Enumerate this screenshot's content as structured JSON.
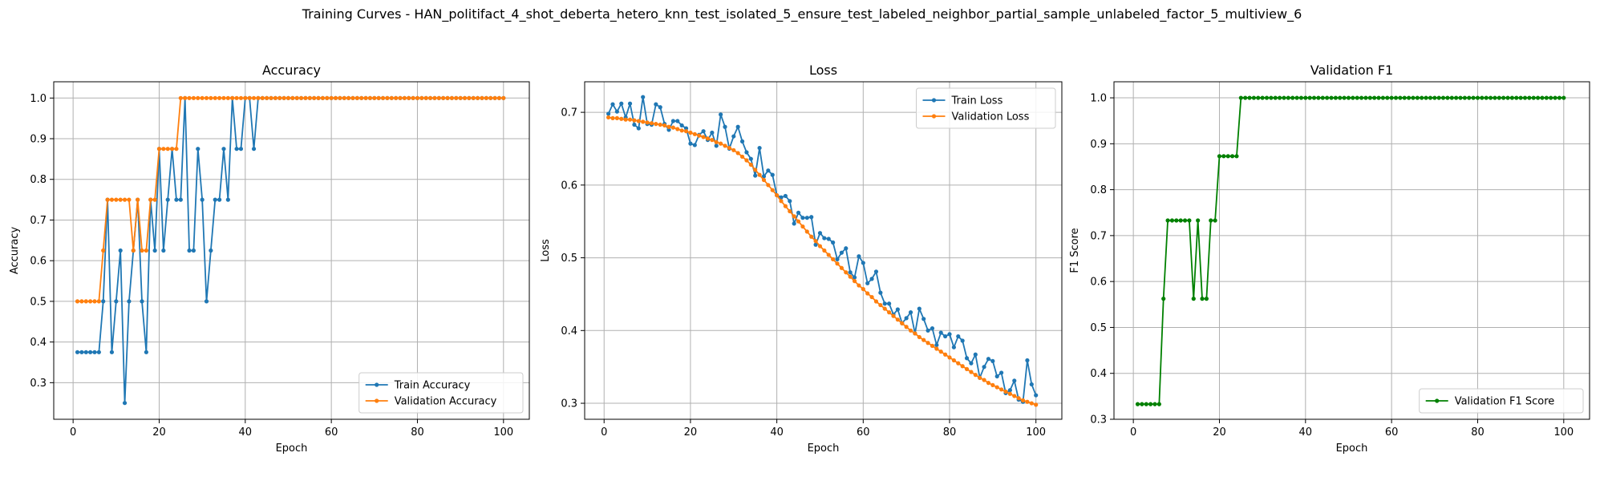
{
  "figure_title": "Training Curves - HAN_politifact_4_shot_deberta_hetero_knn_test_isolated_5_ensure_test_labeled_neighbor_partial_sample_unlabeled_factor_5_multiview_6",
  "colors": {
    "blue": "#1f77b4",
    "orange": "#ff7f0e",
    "green": "#008000",
    "grid": "#b0b0b0"
  },
  "chart_data": [
    {
      "type": "line",
      "title": "Accuracy",
      "xlabel": "Epoch",
      "ylabel": "Accuracy",
      "xlim": [
        -4.5,
        106
      ],
      "ylim": [
        0.21,
        1.04
      ],
      "xticks": [
        0,
        20,
        40,
        60,
        80,
        100
      ],
      "yticks": [
        0.3,
        0.4,
        0.5,
        0.6,
        0.7,
        0.8,
        0.9,
        1.0
      ],
      "ytick_labels": [
        "0.3",
        "0.4",
        "0.5",
        "0.6",
        "0.7",
        "0.8",
        "0.9",
        "1.0"
      ],
      "legend_position": "lower-right",
      "series": [
        {
          "name": "Train Accuracy",
          "color": "#1f77b4",
          "values": [
            0.375,
            0.375,
            0.375,
            0.375,
            0.375,
            0.375,
            0.5,
            0.75,
            0.375,
            0.5,
            0.625,
            0.25,
            0.5,
            0.625,
            0.75,
            0.5,
            0.375,
            0.75,
            0.625,
            0.875,
            0.625,
            0.75,
            0.875,
            0.75,
            0.75,
            1.0,
            0.625,
            0.625,
            0.875,
            0.75,
            0.5,
            0.625,
            0.75,
            0.75,
            0.875,
            0.75,
            1.0,
            0.875,
            0.875,
            1.0,
            1.0,
            0.875,
            1.0,
            1,
            1,
            1,
            1,
            1,
            1,
            1,
            1,
            1,
            1,
            1,
            1,
            1,
            1,
            1,
            1,
            1,
            1,
            1,
            1,
            1,
            1,
            1,
            1,
            1,
            1,
            1,
            1,
            1,
            1,
            1,
            1,
            1,
            1,
            1,
            1,
            1,
            1,
            1,
            1,
            1,
            1,
            1,
            1,
            1,
            1,
            1,
            1,
            1,
            1,
            1,
            1,
            1,
            1,
            1,
            1,
            1
          ]
        },
        {
          "name": "Validation Accuracy",
          "color": "#ff7f0e",
          "values": [
            0.5,
            0.5,
            0.5,
            0.5,
            0.5,
            0.5,
            0.625,
            0.75,
            0.75,
            0.75,
            0.75,
            0.75,
            0.75,
            0.625,
            0.75,
            0.625,
            0.625,
            0.75,
            0.75,
            0.875,
            0.875,
            0.875,
            0.875,
            0.875,
            1.0,
            1,
            1,
            1,
            1,
            1,
            1,
            1,
            1,
            1,
            1,
            1,
            1,
            1,
            1,
            1,
            1,
            1,
            1,
            1,
            1,
            1,
            1,
            1,
            1,
            1,
            1,
            1,
            1,
            1,
            1,
            1,
            1,
            1,
            1,
            1,
            1,
            1,
            1,
            1,
            1,
            1,
            1,
            1,
            1,
            1,
            1,
            1,
            1,
            1,
            1,
            1,
            1,
            1,
            1,
            1,
            1,
            1,
            1,
            1,
            1,
            1,
            1,
            1,
            1,
            1,
            1,
            1,
            1,
            1,
            1,
            1,
            1,
            1,
            1,
            1
          ]
        }
      ]
    },
    {
      "type": "line",
      "title": "Loss",
      "xlabel": "Epoch",
      "ylabel": "Loss",
      "xlim": [
        -4.5,
        106
      ],
      "ylim": [
        0.278,
        0.742
      ],
      "xticks": [
        0,
        20,
        40,
        60,
        80,
        100
      ],
      "yticks": [
        0.3,
        0.4,
        0.5,
        0.6,
        0.7
      ],
      "ytick_labels": [
        "0.3",
        "0.4",
        "0.5",
        "0.6",
        "0.7"
      ],
      "legend_position": "top-right",
      "series": [
        {
          "name": "Train Loss",
          "color": "#1f77b4",
          "values": [
            0.698,
            0.711,
            0.701,
            0.712,
            0.693,
            0.712,
            0.683,
            0.678,
            0.721,
            0.684,
            0.683,
            0.711,
            0.707,
            0.684,
            0.676,
            0.688,
            0.688,
            0.682,
            0.678,
            0.657,
            0.655,
            0.669,
            0.674,
            0.662,
            0.672,
            0.654,
            0.697,
            0.68,
            0.65,
            0.667,
            0.68,
            0.66,
            0.645,
            0.636,
            0.613,
            0.651,
            0.612,
            0.62,
            0.614,
            0.586,
            0.583,
            0.585,
            0.578,
            0.547,
            0.562,
            0.555,
            0.555,
            0.556,
            0.518,
            0.534,
            0.527,
            0.526,
            0.521,
            0.498,
            0.507,
            0.513,
            0.48,
            0.473,
            0.502,
            0.493,
            0.465,
            0.471,
            0.481,
            0.452,
            0.437,
            0.437,
            0.422,
            0.429,
            0.41,
            0.417,
            0.425,
            0.396,
            0.43,
            0.416,
            0.4,
            0.403,
            0.38,
            0.397,
            0.392,
            0.395,
            0.377,
            0.392,
            0.386,
            0.362,
            0.355,
            0.367,
            0.335,
            0.35,
            0.361,
            0.358,
            0.337,
            0.342,
            0.314,
            0.318,
            0.331,
            0.305,
            0.302,
            0.359,
            0.326,
            0.311
          ]
        },
        {
          "name": "Validation Loss",
          "color": "#ff7f0e",
          "values": [
            0.693,
            0.692,
            0.692,
            0.691,
            0.69,
            0.69,
            0.689,
            0.688,
            0.687,
            0.686,
            0.685,
            0.684,
            0.683,
            0.682,
            0.68,
            0.679,
            0.677,
            0.675,
            0.674,
            0.672,
            0.67,
            0.668,
            0.666,
            0.664,
            0.662,
            0.659,
            0.657,
            0.654,
            0.651,
            0.648,
            0.644,
            0.639,
            0.634,
            0.628,
            0.621,
            0.614,
            0.607,
            0.6,
            0.593,
            0.586,
            0.578,
            0.571,
            0.564,
            0.557,
            0.55,
            0.543,
            0.536,
            0.529,
            0.523,
            0.516,
            0.51,
            0.504,
            0.498,
            0.492,
            0.486,
            0.48,
            0.474,
            0.468,
            0.462,
            0.457,
            0.451,
            0.446,
            0.44,
            0.435,
            0.43,
            0.425,
            0.42,
            0.415,
            0.41,
            0.405,
            0.4,
            0.396,
            0.391,
            0.387,
            0.383,
            0.379,
            0.375,
            0.371,
            0.367,
            0.363,
            0.359,
            0.355,
            0.351,
            0.347,
            0.343,
            0.339,
            0.335,
            0.332,
            0.328,
            0.325,
            0.322,
            0.319,
            0.316,
            0.313,
            0.31,
            0.307,
            0.304,
            0.302,
            0.3,
            0.298
          ]
        }
      ]
    },
    {
      "type": "line",
      "title": "Validation F1",
      "xlabel": "Epoch",
      "ylabel": "F1 Score",
      "xlim": [
        -4.5,
        106
      ],
      "ylim": [
        0.3,
        1.035
      ],
      "xticks": [
        0,
        20,
        40,
        60,
        80,
        100
      ],
      "yticks": [
        0.3,
        0.4,
        0.5,
        0.6,
        0.7,
        0.8,
        0.9,
        1.0
      ],
      "ytick_labels": [
        "0.3",
        "0.4",
        "0.5",
        "0.6",
        "0.7",
        "0.8",
        "0.9",
        "1.0"
      ],
      "legend_position": "lower-right",
      "series": [
        {
          "name": "Validation F1 Score",
          "color": "#008000",
          "values": [
            0.333,
            0.333,
            0.333,
            0.333,
            0.333,
            0.333,
            0.5625,
            0.733,
            0.733,
            0.733,
            0.733,
            0.733,
            0.733,
            0.5625,
            0.733,
            0.5625,
            0.5625,
            0.733,
            0.733,
            0.873,
            0.873,
            0.873,
            0.873,
            0.873,
            1.0,
            1,
            1,
            1,
            1,
            1,
            1,
            1,
            1,
            1,
            1,
            1,
            1,
            1,
            1,
            1,
            1,
            1,
            1,
            1,
            1,
            1,
            1,
            1,
            1,
            1,
            1,
            1,
            1,
            1,
            1,
            1,
            1,
            1,
            1,
            1,
            1,
            1,
            1,
            1,
            1,
            1,
            1,
            1,
            1,
            1,
            1,
            1,
            1,
            1,
            1,
            1,
            1,
            1,
            1,
            1,
            1,
            1,
            1,
            1,
            1,
            1,
            1,
            1,
            1,
            1,
            1,
            1,
            1,
            1,
            1,
            1,
            1,
            1,
            1,
            1
          ]
        }
      ]
    }
  ]
}
